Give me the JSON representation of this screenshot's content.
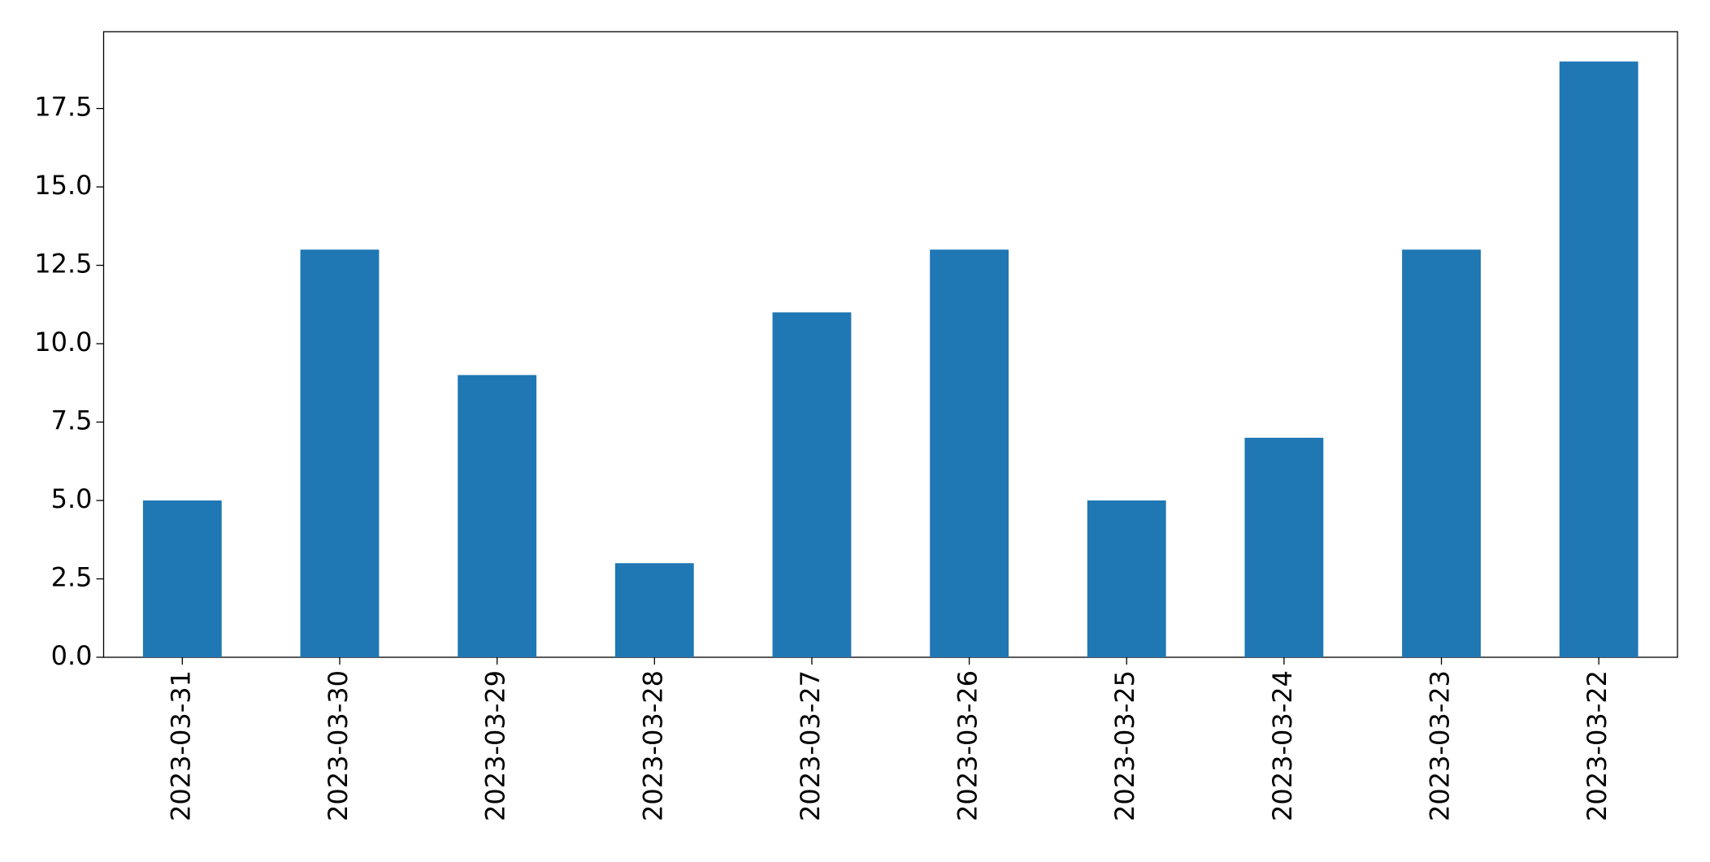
{
  "chart_data": {
    "type": "bar",
    "categories": [
      "2023-03-31",
      "2023-03-30",
      "2023-03-29",
      "2023-03-28",
      "2023-03-27",
      "2023-03-26",
      "2023-03-25",
      "2023-03-24",
      "2023-03-23",
      "2023-03-22"
    ],
    "values": [
      5,
      13,
      9,
      3,
      11,
      13,
      5,
      7,
      13,
      19
    ],
    "color": "#1f77b4",
    "ylim": [
      0,
      19.95
    ],
    "yticks": [
      {
        "value": 0,
        "label": "0.0"
      },
      2.5,
      {
        "value": 5,
        "label": "5.0"
      },
      7.5,
      {
        "value": 10,
        "label": "10.0"
      },
      12.5,
      {
        "value": 15,
        "label": "15.0"
      },
      17.5
    ],
    "grid": false
  }
}
